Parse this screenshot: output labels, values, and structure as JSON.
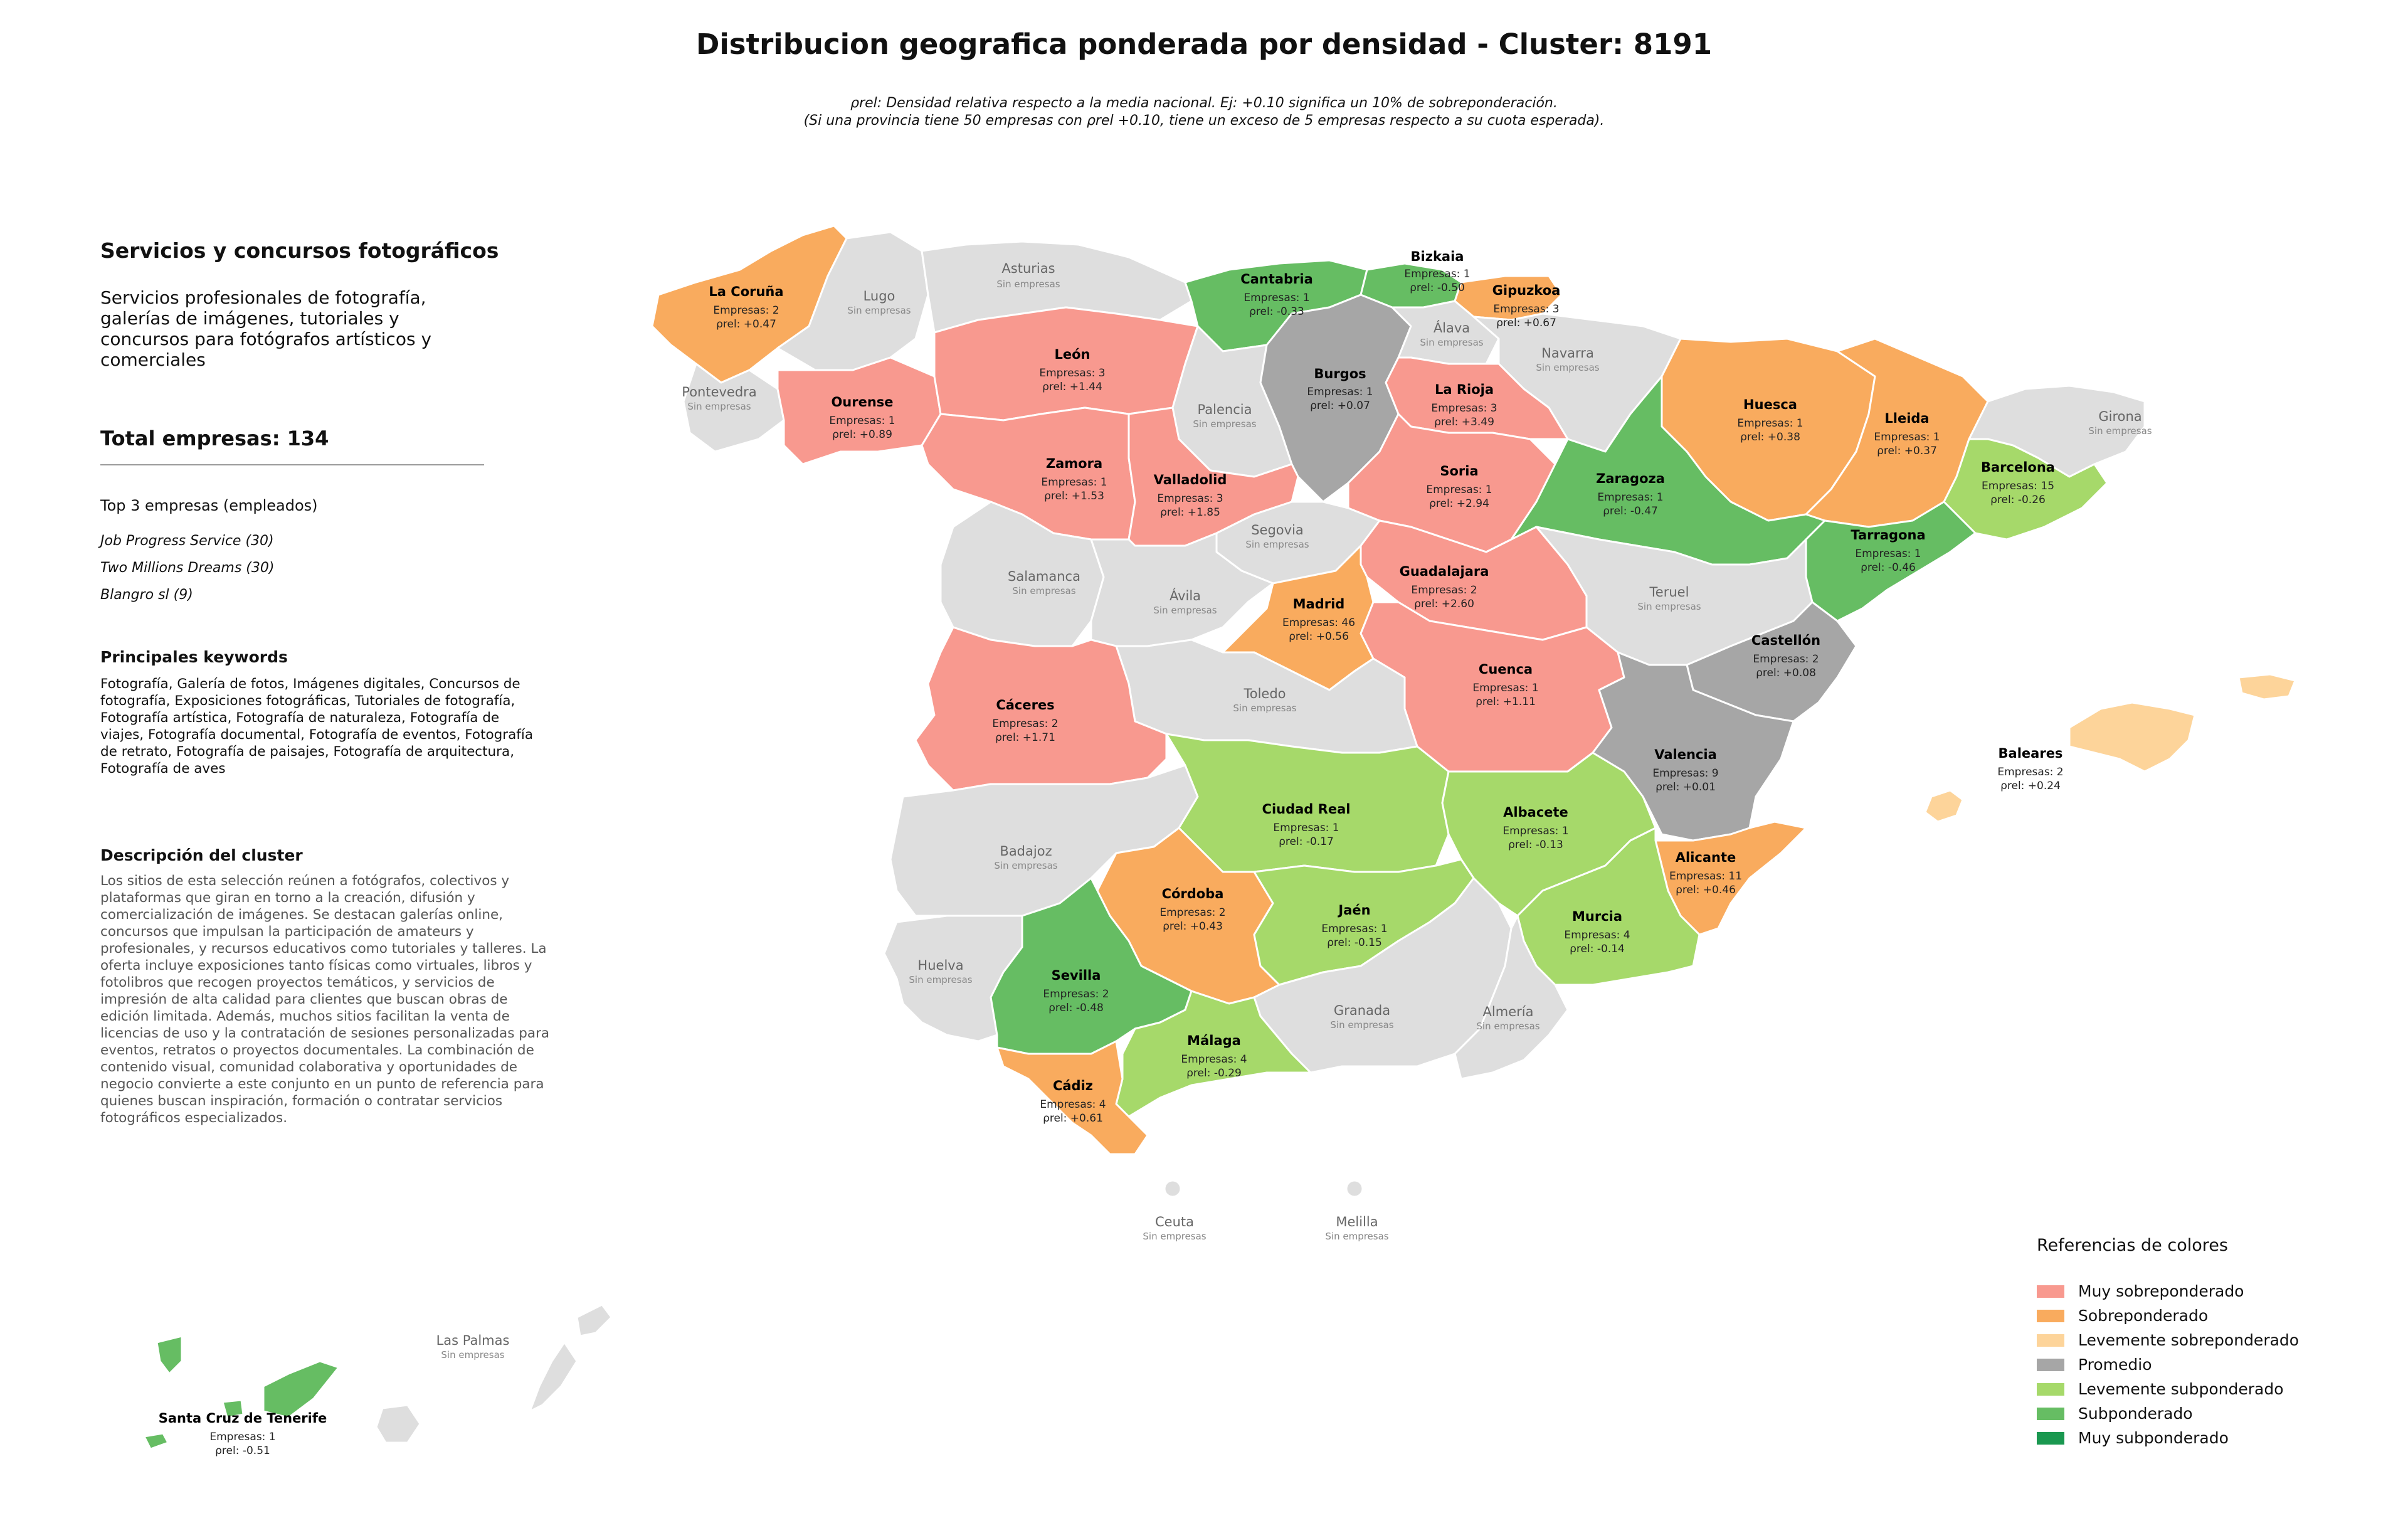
{
  "header": {
    "title": "Distribucion geografica ponderada por densidad - Cluster: 8191",
    "subtitle_line1": "ρrel: Densidad relativa respecto a la media nacional. Ej: +0.10 significa un 10% de sobreponderación.",
    "subtitle_line2": "(Si una provincia tiene 50 empresas con ρrel +0.10, tiene un exceso de 5 empresas respecto a su cuota esperada)."
  },
  "panel": {
    "heading": "Servicios y concursos fotográficos",
    "description": "Servicios profesionales de fotografía, galerías de imágenes, tutoriales y concursos para fotógrafos artísticos y comerciales",
    "total": "Total empresas: 134",
    "top3_heading": "Top 3 empresas (empleados)",
    "top_companies": [
      "Job Progress Service (30)",
      "Two Millions Dreams (30)",
      "Blangro sl (9)"
    ],
    "keywords_heading": "Principales keywords",
    "keywords": "Fotografía, Galería de fotos, Imágenes digitales, Concursos de fotografía, Exposiciones fotográficas, Tutoriales de fotografía, Fotografía artística, Fotografía de naturaleza, Fotografía de viajes, Fotografía documental, Fotografía de eventos, Fotografía de retrato, Fotografía de paisajes, Fotografía de arquitectura, Fotografía de aves",
    "cluster_heading": "Descripción del cluster",
    "cluster_text": "Los sitios de esta selección reúnen a fotógrafos, colectivos y plataformas que giran en torno a la creación, difusión y comercialización de imágenes. Se destacan galerías online, concursos que impulsan la participación de amateurs y profesionales, y recursos educativos como tutoriales y talleres. La oferta incluye exposiciones tanto físicas como virtuales, libros y fotolibros que recogen proyectos temáticos, y servicios de impresión de alta calidad para clientes que buscan obras de edición limitada. Además, muchos sitios facilitan la venta de licencias de uso y la contratación de sesiones personalizadas para eventos, retratos o proyectos documentales. La combinación de contenido visual, comunidad colaborativa y oportunidades de negocio convierte a este conjunto en un punto de referencia para quienes buscan inspiración, formación o contratar servicios fotográficos especializados."
  },
  "map": {
    "empresas_prefix": "Empresas: ",
    "rho_label": "ρrel: ",
    "no_data_label": "Sin empresas",
    "provinces": [
      {
        "name": "La Coruña",
        "empresas": "2",
        "rho": "+0.47",
        "category": "sobre"
      },
      {
        "name": "Ourense",
        "empresas": "1",
        "rho": "+0.89",
        "category": "muy_sobre"
      },
      {
        "name": "León",
        "empresas": "3",
        "rho": "+1.44",
        "category": "muy_sobre"
      },
      {
        "name": "Zamora",
        "empresas": "1",
        "rho": "+1.53",
        "category": "muy_sobre"
      },
      {
        "name": "Valladolid",
        "empresas": "3",
        "rho": "+1.85",
        "category": "muy_sobre"
      },
      {
        "name": "Cantabria",
        "empresas": "1",
        "rho": "-0.33",
        "category": "sub"
      },
      {
        "name": "Bizkaia",
        "empresas": "1",
        "rho": "-0.50",
        "category": "sub"
      },
      {
        "name": "Gipuzkoa",
        "empresas": "3",
        "rho": "+0.67",
        "category": "sobre"
      },
      {
        "name": "Burgos",
        "empresas": "1",
        "rho": "+0.07",
        "category": "promedio"
      },
      {
        "name": "La Rioja",
        "empresas": "3",
        "rho": "+3.49",
        "category": "muy_sobre"
      },
      {
        "name": "Soria",
        "empresas": "1",
        "rho": "+2.94",
        "category": "muy_sobre"
      },
      {
        "name": "Huesca",
        "empresas": "1",
        "rho": "+0.38",
        "category": "sobre"
      },
      {
        "name": "Lleida",
        "empresas": "1",
        "rho": "+0.37",
        "category": "sobre"
      },
      {
        "name": "Barcelona",
        "empresas": "15",
        "rho": "-0.26",
        "category": "lev_sub"
      },
      {
        "name": "Zaragoza",
        "empresas": "1",
        "rho": "-0.47",
        "category": "sub"
      },
      {
        "name": "Tarragona",
        "empresas": "1",
        "rho": "-0.46",
        "category": "sub"
      },
      {
        "name": "Guadalajara",
        "empresas": "2",
        "rho": "+2.60",
        "category": "muy_sobre"
      },
      {
        "name": "Madrid",
        "empresas": "46",
        "rho": "+0.56",
        "category": "sobre"
      },
      {
        "name": "Cuenca",
        "empresas": "1",
        "rho": "+1.11",
        "category": "muy_sobre"
      },
      {
        "name": "Castellón",
        "empresas": "2",
        "rho": "+0.08",
        "category": "promedio"
      },
      {
        "name": "Valencia",
        "empresas": "9",
        "rho": "+0.01",
        "category": "promedio"
      },
      {
        "name": "Cáceres",
        "empresas": "2",
        "rho": "+1.71",
        "category": "muy_sobre"
      },
      {
        "name": "Ciudad Real",
        "empresas": "1",
        "rho": "-0.17",
        "category": "lev_sub"
      },
      {
        "name": "Albacete",
        "empresas": "1",
        "rho": "-0.13",
        "category": "lev_sub"
      },
      {
        "name": "Alicante",
        "empresas": "11",
        "rho": "+0.46",
        "category": "sobre"
      },
      {
        "name": "Córdoba",
        "empresas": "2",
        "rho": "+0.43",
        "category": "sobre"
      },
      {
        "name": "Jaén",
        "empresas": "1",
        "rho": "-0.15",
        "category": "lev_sub"
      },
      {
        "name": "Murcia",
        "empresas": "4",
        "rho": "-0.14",
        "category": "lev_sub"
      },
      {
        "name": "Sevilla",
        "empresas": "2",
        "rho": "-0.48",
        "category": "sub"
      },
      {
        "name": "Málaga",
        "empresas": "4",
        "rho": "-0.29",
        "category": "lev_sub"
      },
      {
        "name": "Cádiz",
        "empresas": "4",
        "rho": "+0.61",
        "category": "sobre"
      },
      {
        "name": "Baleares",
        "empresas": "2",
        "rho": "+0.24",
        "category": "lev_sobre"
      },
      {
        "name": "Santa Cruz de Tenerife",
        "empresas": "1",
        "rho": "-0.51",
        "category": "sub"
      }
    ],
    "empty_provinces": [
      "Lugo",
      "Asturias",
      "Pontevedra",
      "Palencia",
      "Álava",
      "Navarra",
      "Girona",
      "Salamanca",
      "Segovia",
      "Ávila",
      "Teruel",
      "Toledo",
      "Badajoz",
      "Huelva",
      "Granada",
      "Almería",
      "Ceuta",
      "Melilla",
      "Las Palmas"
    ]
  },
  "legend": {
    "title": "Referencias de colores",
    "items": [
      {
        "label": "Muy sobreponderado",
        "color": "#F8998F"
      },
      {
        "label": "Sobreponderado",
        "color": "#F9AB5E"
      },
      {
        "label": "Levemente sobreponderado",
        "color": "#FDD49A"
      },
      {
        "label": "Promedio",
        "color": "#A6A6A6"
      },
      {
        "label": "Levemente subponderado",
        "color": "#A6D96A"
      },
      {
        "label": "Subponderado",
        "color": "#66BD63"
      },
      {
        "label": "Muy subponderado",
        "color": "#1A9850"
      }
    ]
  },
  "colors": {
    "muy_sobre": "#F8998F",
    "sobre": "#F9AB5E",
    "lev_sobre": "#FDD49A",
    "promedio": "#A6A6A6",
    "lev_sub": "#A6D96A",
    "sub": "#66BD63",
    "muy_sub": "#1A9850",
    "empty": "#DEDEDE"
  }
}
